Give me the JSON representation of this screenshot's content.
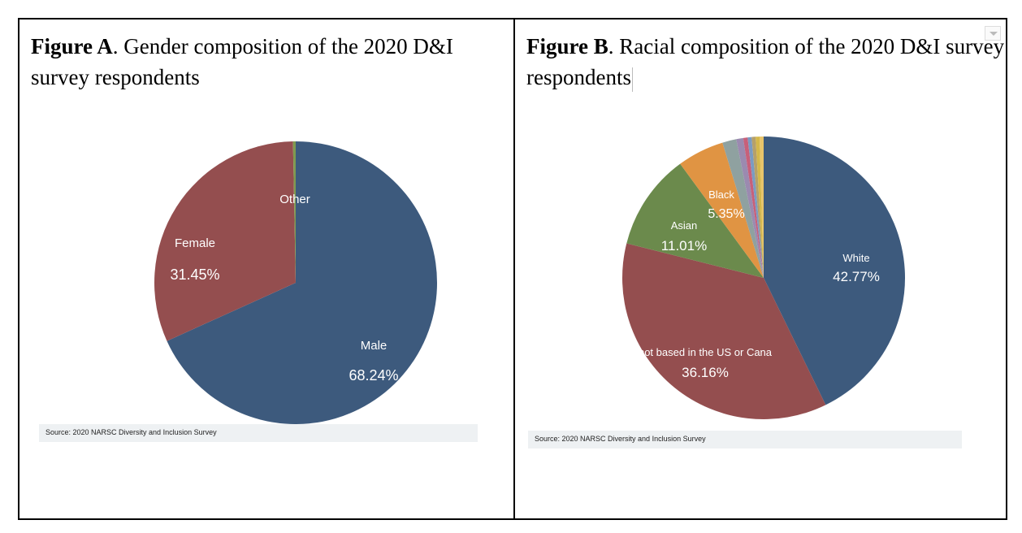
{
  "figureA": {
    "caption_bold": "Figure A",
    "caption_rest": ". Gender composition of the 2020 D&I survey respondents",
    "source": "Source: 2020 NARSC Diversity and Inclusion Survey"
  },
  "figureB": {
    "caption_bold": "Figure B",
    "caption_rest": ". Racial composition of the 2020 D&I survey respondents",
    "source": "Source: 2020 NARSC Diversity and Inclusion Survey"
  },
  "chart_data": [
    {
      "type": "pie",
      "title": "",
      "start_angle": 0,
      "slices": [
        {
          "label": "Male",
          "percent_label": "68.24%",
          "value": 68.24,
          "color": "#3d5a7d"
        },
        {
          "label": "Female",
          "percent_label": "31.45%",
          "value": 31.45,
          "color": "#944e4f"
        },
        {
          "label": "Other",
          "percent_label": "",
          "value": 0.31,
          "color": "#7f9a4f"
        }
      ]
    },
    {
      "type": "pie",
      "title": "",
      "start_angle": 0,
      "slices": [
        {
          "label": "White",
          "percent_label": "42.77%",
          "value": 42.77,
          "color": "#3d5a7d"
        },
        {
          "label": "not based in the US or Cana",
          "percent_label": "36.16%",
          "value": 36.16,
          "color": "#944e4f"
        },
        {
          "label": "Asian",
          "percent_label": "11.01%",
          "value": 11.01,
          "color": "#6b8a4c"
        },
        {
          "label": "Black",
          "percent_label": "5.35%",
          "value": 5.35,
          "color": "#e09443"
        },
        {
          "label": "",
          "percent_label": "",
          "value": 1.6,
          "color": "#8fa1a0"
        },
        {
          "label": "",
          "percent_label": "",
          "value": 0.8,
          "color": "#9b8ab0"
        },
        {
          "label": "",
          "percent_label": "",
          "value": 0.5,
          "color": "#c7607a"
        },
        {
          "label": "",
          "percent_label": "",
          "value": 0.45,
          "color": "#7a9bc2"
        },
        {
          "label": "",
          "percent_label": "",
          "value": 0.45,
          "color": "#b5a06a"
        },
        {
          "label": "",
          "percent_label": "",
          "value": 0.45,
          "color": "#d4b84a"
        },
        {
          "label": "",
          "percent_label": "",
          "value": 0.46,
          "color": "#e8c46a"
        }
      ]
    }
  ]
}
